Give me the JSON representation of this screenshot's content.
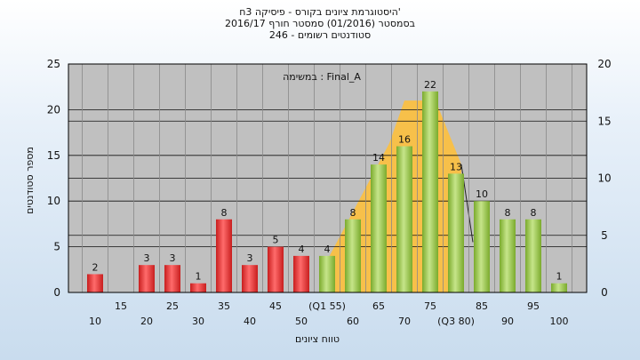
{
  "chart_data": {
    "type": "bar",
    "title": "היסטוגרמת ציונים בקורס - פיסיקה 3ח'",
    "subtitle": "בסמסטר  (01/2016)  סמסטר חורף 2016/17",
    "subtitle2": "סטודנטים רשומים - 246",
    "annotation": "במשימה : Final_A",
    "xlabel": "טווח ציונים",
    "ylabel": "מספר סטודנטים",
    "ylim": [
      0,
      25
    ],
    "y2lim": [
      0,
      20
    ],
    "yticks": [
      "0",
      "5",
      "10",
      "15",
      "20",
      "25"
    ],
    "y2ticks": [
      "0",
      "5",
      "10",
      "15",
      "20"
    ],
    "grid": true,
    "categories": [
      "10",
      "15",
      "20",
      "25",
      "30",
      "35",
      "40",
      "45",
      "50",
      "55",
      "60",
      "65",
      "70",
      "75",
      "80",
      "85",
      "90",
      "95",
      "100"
    ],
    "x_tick_labels": [
      "10",
      "15",
      "20",
      "25",
      "30",
      "35",
      "40",
      "45",
      "50",
      "(Q1 55)",
      "60",
      "65",
      "70",
      "75",
      "(Q3 80)",
      "85",
      "90",
      "95",
      "100"
    ],
    "values": [
      2,
      0,
      3,
      3,
      1,
      8,
      3,
      5,
      4,
      4,
      8,
      14,
      16,
      22,
      13,
      10,
      8,
      8,
      1
    ],
    "data_labels": [
      "2",
      "",
      "3",
      "3",
      "1",
      "8",
      "3",
      "5",
      "4",
      "4",
      "8",
      "14",
      "16",
      "22",
      "13",
      "10",
      "8",
      "8",
      "1"
    ],
    "bar_colors": [
      "red",
      "red",
      "red",
      "red",
      "red",
      "red",
      "red",
      "red",
      "red",
      "green",
      "green",
      "green",
      "green",
      "green",
      "green",
      "green",
      "green",
      "green",
      "green"
    ],
    "iqr_band": {
      "q1": "55",
      "q3": "80",
      "median": "75",
      "peak": 21
    }
  },
  "colors": {
    "plot_bg": "#c0c0c0",
    "red_bar": "#e03a3a",
    "green_bar": "#9fcc4e",
    "band": "#f7c04a"
  }
}
